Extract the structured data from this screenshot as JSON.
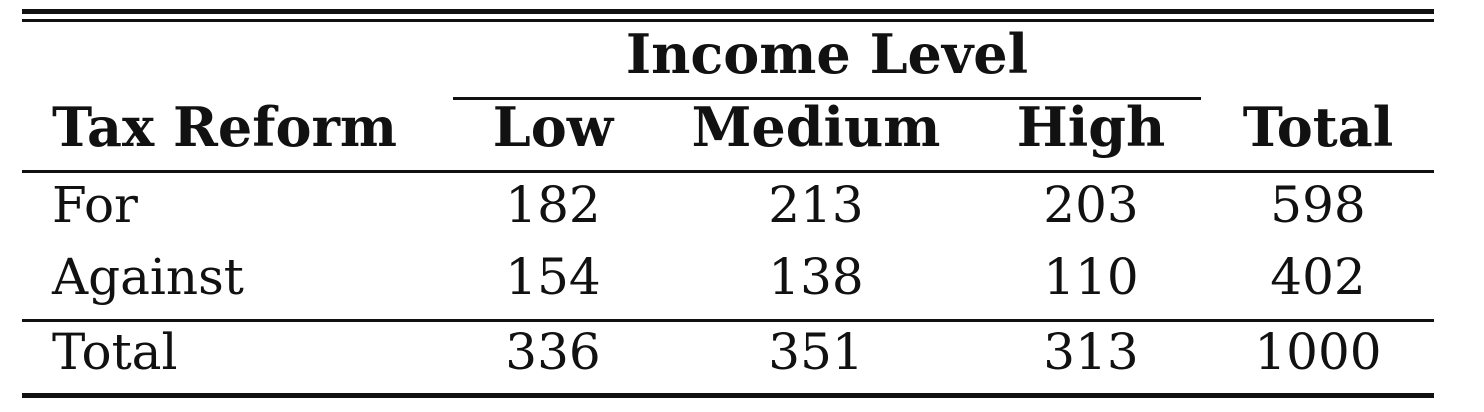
{
  "table": {
    "group_header": "Income Level",
    "row_header": "Tax Reform",
    "columns": [
      "Low",
      "Medium",
      "High",
      "Total"
    ],
    "rows": [
      {
        "label": "For",
        "values": [
          "182",
          "213",
          "203",
          "598"
        ]
      },
      {
        "label": "Against",
        "values": [
          "154",
          "138",
          "110",
          "402"
        ]
      }
    ],
    "total_row": {
      "label": "Total",
      "values": [
        "336",
        "351",
        "313",
        "1000"
      ]
    }
  }
}
